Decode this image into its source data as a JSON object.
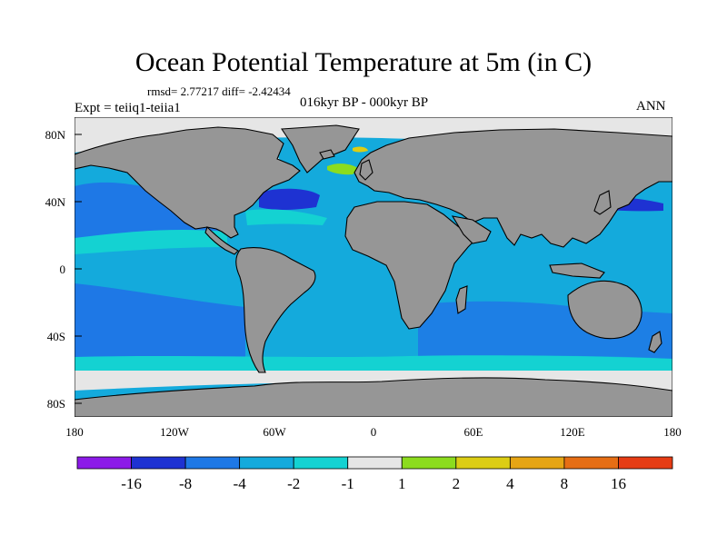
{
  "title": "Ocean Potential Temperature at 5m (in C)",
  "stats": "rmsd= 2.77217 diff= -2.42434",
  "expt": "Expt = teiiq1-teiia1",
  "period": "016kyr BP - 000kyr BP",
  "season": "ANN",
  "lat_ticks": [
    "80N",
    "40N",
    "0",
    "40S",
    "80S"
  ],
  "lon_ticks": [
    "180",
    "120W",
    "60W",
    "0",
    "60E",
    "120E",
    "180"
  ],
  "colorbar": {
    "colors": [
      "#8c1ae8",
      "#1e32d2",
      "#1e78e6",
      "#14aadc",
      "#14d2d2",
      "#e6e6e6",
      "#8cdc1e",
      "#dccd14",
      "#e6a514",
      "#e66e14",
      "#e63c14"
    ],
    "labels": [
      "-16",
      "-8",
      "-4",
      "-2",
      "-1",
      "1",
      "2",
      "4",
      "8",
      "16"
    ]
  },
  "colors": {
    "land": "#969696",
    "ocean_main": "#14aadc",
    "ocean_warm_band": "#14d2d2",
    "polar_ice": "#e6e6e6",
    "strong_cold": "#1e32d2",
    "cold": "#1e78e6"
  }
}
